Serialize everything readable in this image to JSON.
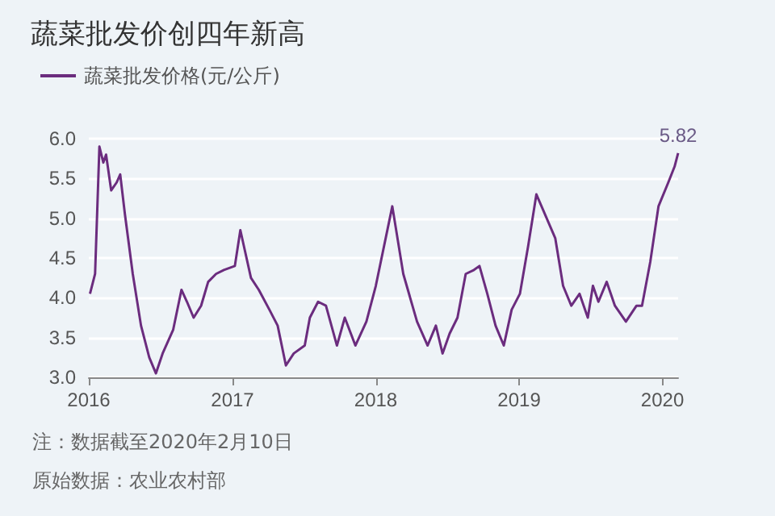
{
  "chart_data": {
    "type": "line",
    "title": "蔬菜批发价创四年新高",
    "series": [
      {
        "name": "蔬菜批发价格(元/公斤)",
        "color": "#6b2c7e",
        "x": [
          "2016-01-04",
          "2016-01-17",
          "2016-01-28",
          "2016-02-07",
          "2016-02-14",
          "2016-02-27",
          "2016-03-12",
          "2016-03-21",
          "2016-04-02",
          "2016-04-22",
          "2016-05-13",
          "2016-06-03",
          "2016-06-20",
          "2016-07-07",
          "2016-08-03",
          "2016-08-24",
          "2016-09-07",
          "2016-09-24",
          "2016-10-13",
          "2016-10-31",
          "2016-11-20",
          "2016-12-10",
          "2017-01-07",
          "2017-01-21",
          "2017-01-30",
          "2017-02-17",
          "2017-03-09",
          "2017-04-05",
          "2017-04-26",
          "2017-05-17",
          "2017-06-06",
          "2017-07-04",
          "2017-07-17",
          "2017-08-07",
          "2017-08-27",
          "2017-09-24",
          "2017-10-14",
          "2017-11-10",
          "2017-12-08",
          "2018-01-01",
          "2018-02-12",
          "2018-03-12",
          "2018-04-16",
          "2018-05-13",
          "2018-06-03",
          "2018-06-20",
          "2018-07-08",
          "2018-07-28",
          "2018-08-18",
          "2018-09-08",
          "2018-09-22",
          "2018-10-12",
          "2018-11-02",
          "2018-11-23",
          "2018-12-13",
          "2019-01-03",
          "2019-01-24",
          "2019-02-14",
          "2019-04-03",
          "2019-04-23",
          "2019-05-14",
          "2019-06-04",
          "2019-06-25",
          "2019-07-08",
          "2019-07-22",
          "2019-08-12",
          "2019-09-02",
          "2019-09-30",
          "2019-10-27",
          "2019-11-10",
          "2019-12-01",
          "2019-12-22",
          "2020-01-16",
          "2020-02-01",
          "2020-02-10"
        ],
        "values": [
          4.05,
          4.3,
          5.9,
          5.7,
          5.8,
          5.35,
          5.45,
          5.55,
          5.05,
          4.3,
          3.65,
          3.25,
          3.05,
          3.3,
          3.6,
          4.1,
          3.95,
          3.75,
          3.9,
          4.2,
          4.3,
          4.35,
          4.4,
          4.85,
          4.65,
          4.25,
          4.1,
          3.85,
          3.65,
          3.15,
          3.3,
          3.4,
          3.75,
          3.95,
          3.9,
          3.4,
          3.75,
          3.4,
          3.7,
          4.15,
          5.15,
          4.3,
          3.7,
          3.4,
          3.65,
          3.3,
          3.55,
          3.75,
          4.3,
          4.35,
          4.4,
          4.05,
          3.65,
          3.4,
          3.85,
          4.05,
          4.65,
          5.3,
          4.75,
          4.15,
          3.9,
          4.05,
          3.75,
          4.15,
          3.95,
          4.2,
          3.9,
          3.7,
          3.9,
          3.9,
          4.45,
          5.15,
          5.45,
          5.65,
          5.82
        ],
        "value_labels": [
          null,
          null,
          null,
          null,
          null,
          null,
          null,
          null,
          null,
          null,
          null,
          null,
          null,
          null,
          null,
          null,
          null,
          null,
          null,
          null,
          null,
          null,
          null,
          null,
          null,
          null,
          null,
          null,
          null,
          null,
          null,
          null,
          null,
          null,
          null,
          null,
          null,
          null,
          null,
          null,
          null,
          null,
          null,
          null,
          null,
          null,
          null,
          null,
          null,
          null,
          null,
          null,
          null,
          null,
          null,
          null,
          null,
          null,
          null,
          null,
          null,
          null,
          null,
          null,
          null,
          null,
          null,
          null,
          null,
          null,
          null,
          null,
          null,
          null,
          "5.82"
        ]
      }
    ],
    "xlim": [
      "2016-01-01",
      "2020-02-10"
    ],
    "xticks": [
      "2016",
      "2017",
      "2018",
      "2019",
      "2020"
    ],
    "ylim": [
      3,
      6
    ],
    "yticks": [
      {
        "value": 3,
        "label": "3.0"
      },
      {
        "value": 3.5,
        "label": "3.5"
      },
      {
        "value": 4,
        "label": "4.0"
      },
      {
        "value": 4.5,
        "label": "4.5"
      },
      {
        "value": 5,
        "label": "5.0"
      },
      {
        "value": 5.5,
        "label": "5.5"
      },
      {
        "value": 6,
        "label": "6.0"
      }
    ],
    "grid": "y",
    "legend": "top left",
    "marker": "none",
    "line_style": "solid",
    "annotations": [
      "注：数据截至2020年2月10日",
      "原始数据：农业农村部"
    ]
  }
}
